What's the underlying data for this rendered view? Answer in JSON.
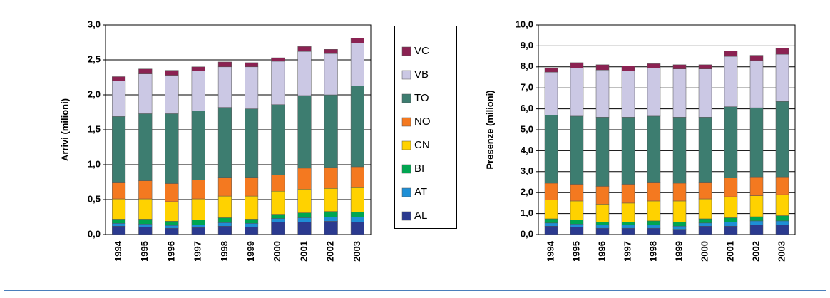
{
  "chart_data": [
    {
      "type": "bar",
      "stacked": true,
      "y_label": "Arrivi (milioni)",
      "categories": [
        "1994",
        "1995",
        "1996",
        "1997",
        "1998",
        "1999",
        "2000",
        "2001",
        "2002",
        "2003"
      ],
      "ylim": [
        0,
        3
      ],
      "yticks": [
        {
          "value": 0,
          "label": "0,0"
        },
        {
          "value": 0.5,
          "label": "0,5"
        },
        {
          "value": 1,
          "label": "1,0"
        },
        {
          "value": 1.5,
          "label": "1,5"
        },
        {
          "value": 2,
          "label": "2,0"
        },
        {
          "value": 2.5,
          "label": "2,5"
        },
        {
          "value": 3,
          "label": "3,0"
        }
      ],
      "grid": true,
      "series": [
        {
          "name": "AL",
          "color": "#2b3a8f",
          "values": [
            0.12,
            0.11,
            0.09,
            0.1,
            0.12,
            0.11,
            0.18,
            0.18,
            0.19,
            0.18
          ]
        },
        {
          "name": "AT",
          "color": "#1e8fd6",
          "values": [
            0.04,
            0.04,
            0.04,
            0.04,
            0.05,
            0.05,
            0.05,
            0.06,
            0.06,
            0.07
          ]
        },
        {
          "name": "BI",
          "color": "#00a651",
          "values": [
            0.06,
            0.07,
            0.06,
            0.07,
            0.07,
            0.06,
            0.06,
            0.07,
            0.08,
            0.07
          ]
        },
        {
          "name": "CN",
          "color": "#ffd200",
          "values": [
            0.29,
            0.29,
            0.28,
            0.3,
            0.31,
            0.33,
            0.33,
            0.34,
            0.33,
            0.35
          ]
        },
        {
          "name": "NO",
          "color": "#f47920",
          "values": [
            0.24,
            0.26,
            0.26,
            0.27,
            0.27,
            0.27,
            0.23,
            0.3,
            0.3,
            0.3
          ]
        },
        {
          "name": "TO",
          "color": "#3d7d70",
          "values": [
            0.94,
            0.96,
            1.0,
            0.99,
            1.0,
            0.98,
            1.01,
            1.04,
            1.04,
            1.16
          ]
        },
        {
          "name": "VB",
          "color": "#cbc8e4",
          "values": [
            0.51,
            0.57,
            0.55,
            0.57,
            0.58,
            0.6,
            0.62,
            0.63,
            0.59,
            0.61
          ]
        },
        {
          "name": "VC",
          "color": "#8b2252",
          "values": [
            0.06,
            0.07,
            0.07,
            0.06,
            0.07,
            0.06,
            0.05,
            0.07,
            0.06,
            0.07
          ]
        }
      ]
    },
    {
      "type": "bar",
      "stacked": true,
      "y_label": "Presenze (milioni)",
      "categories": [
        "1994",
        "1995",
        "1996",
        "1997",
        "1998",
        "1999",
        "2000",
        "2001",
        "2002",
        "2003"
      ],
      "ylim": [
        0,
        10
      ],
      "yticks": [
        {
          "value": 0,
          "label": "0,0"
        },
        {
          "value": 1,
          "label": "1,0"
        },
        {
          "value": 2,
          "label": "2,0"
        },
        {
          "value": 3,
          "label": "3,0"
        },
        {
          "value": 4,
          "label": "4,0"
        },
        {
          "value": 5,
          "label": "5,0"
        },
        {
          "value": 6,
          "label": "6,0"
        },
        {
          "value": 7,
          "label": "7,0"
        },
        {
          "value": 8,
          "label": "8,0"
        },
        {
          "value": 9,
          "label": "9,0"
        },
        {
          "value": 10,
          "label": "10,0"
        }
      ],
      "grid": true,
      "series": [
        {
          "name": "AL",
          "color": "#2b3a8f",
          "values": [
            0.4,
            0.35,
            0.3,
            0.3,
            0.3,
            0.25,
            0.4,
            0.4,
            0.45,
            0.45
          ]
        },
        {
          "name": "AT",
          "color": "#1e8fd6",
          "values": [
            0.15,
            0.15,
            0.15,
            0.15,
            0.15,
            0.15,
            0.15,
            0.2,
            0.2,
            0.2
          ]
        },
        {
          "name": "BI",
          "color": "#00a651",
          "values": [
            0.2,
            0.2,
            0.15,
            0.15,
            0.2,
            0.2,
            0.2,
            0.2,
            0.2,
            0.25
          ]
        },
        {
          "name": "CN",
          "color": "#ffd200",
          "values": [
            0.9,
            0.9,
            0.85,
            0.9,
            0.95,
            1.0,
            0.95,
            1.0,
            1.0,
            1.0
          ]
        },
        {
          "name": "NO",
          "color": "#f47920",
          "values": [
            0.8,
            0.8,
            0.85,
            0.9,
            0.9,
            0.85,
            0.8,
            0.9,
            0.9,
            0.85
          ]
        },
        {
          "name": "TO",
          "color": "#3d7d70",
          "values": [
            3.25,
            3.25,
            3.3,
            3.2,
            3.15,
            3.15,
            3.1,
            3.4,
            3.3,
            3.6
          ]
        },
        {
          "name": "VB",
          "color": "#cbc8e4",
          "values": [
            2.05,
            2.3,
            2.25,
            2.2,
            2.3,
            2.3,
            2.3,
            2.4,
            2.25,
            2.25
          ]
        },
        {
          "name": "VC",
          "color": "#8b2252",
          "values": [
            0.2,
            0.25,
            0.25,
            0.25,
            0.2,
            0.2,
            0.2,
            0.25,
            0.25,
            0.3
          ]
        }
      ]
    }
  ]
}
